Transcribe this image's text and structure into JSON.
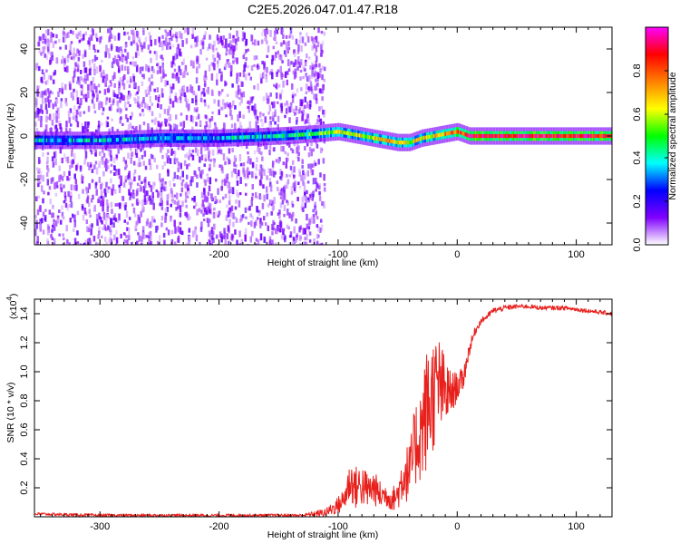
{
  "title": "C2E5.2026.047.01.47.R18",
  "chart_data": [
    {
      "type": "heatmap",
      "name": "spectrogram",
      "xlabel": "Height of straight line (km)",
      "ylabel": "Frequency (Hz)",
      "xlim": [
        -355,
        130
      ],
      "ylim": [
        -50,
        50
      ],
      "xticks": [
        -300,
        -200,
        -100,
        0,
        100
      ],
      "yticks": [
        -40,
        -20,
        0,
        20,
        40
      ],
      "colorbar": {
        "label": "Normalized spectral amplitude",
        "range": [
          0,
          1
        ],
        "ticks": [
          0.0,
          0.2,
          0.4,
          0.6,
          0.8
        ],
        "tick_labels": [
          "0.0",
          "0.2",
          "0.4",
          "0.6",
          "0.8"
        ],
        "colormap": [
          "#ffffff",
          "#8000ff",
          "#0000ff",
          "#00ffff",
          "#00ff00",
          "#ffff00",
          "#ff8000",
          "#ff0000",
          "#ff00ff"
        ]
      },
      "noise_region": {
        "x_range": [
          -355,
          -112
        ],
        "freq_range": [
          -50,
          50
        ],
        "typical_amplitude": 0.1
      },
      "carrier_track": {
        "x": [
          -355,
          -300,
          -250,
          -200,
          -150,
          -120,
          -100,
          -80,
          -60,
          -50,
          -40,
          -30,
          -20,
          -10,
          0,
          10,
          50,
          100,
          130
        ],
        "freq": [
          -2,
          -2,
          -1,
          -1,
          0,
          1,
          2,
          0,
          -2,
          -3,
          -3,
          -1,
          0,
          1,
          2,
          0,
          0,
          0,
          0
        ],
        "amplitude": [
          0.35,
          0.35,
          0.35,
          0.35,
          0.4,
          0.5,
          0.6,
          0.6,
          0.65,
          0.65,
          0.6,
          0.6,
          0.65,
          0.7,
          0.8,
          0.9,
          0.9,
          0.9,
          0.9
        ]
      }
    },
    {
      "type": "line",
      "name": "snr",
      "xlabel": "Height of straight line (km)",
      "ylabel": "SNR (10 * v/v)",
      "yscale_label": "(x10",
      "yscale_exponent": "4",
      "yscale_suffix": ")",
      "xlim": [
        -355,
        130
      ],
      "ylim": [
        0,
        1.5
      ],
      "xticks": [
        -300,
        -200,
        -100,
        0,
        100
      ],
      "yticks": [
        0.2,
        0.4,
        0.6,
        0.8,
        1.0,
        1.2,
        1.4
      ],
      "ytick_labels": [
        "0.2",
        "0.4",
        "0.6",
        "0.8",
        "1.0",
        "1.2",
        "1.4"
      ],
      "series": [
        {
          "name": "SNR",
          "color": "#e8201c",
          "x": [
            -355,
            -300,
            -200,
            -130,
            -110,
            -100,
            -95,
            -90,
            -85,
            -80,
            -75,
            -70,
            -65,
            -60,
            -55,
            -50,
            -45,
            -40,
            -35,
            -30,
            -25,
            -20,
            -15,
            -10,
            -5,
            0,
            5,
            10,
            15,
            20,
            25,
            30,
            40,
            50,
            60,
            70,
            80,
            90,
            100,
            110,
            120,
            130
          ],
          "y": [
            0.02,
            0.01,
            0.01,
            0.01,
            0.03,
            0.08,
            0.12,
            0.25,
            0.2,
            0.22,
            0.18,
            0.2,
            0.15,
            0.15,
            0.12,
            0.15,
            0.3,
            0.3,
            0.5,
            0.6,
            0.75,
            0.85,
            0.9,
            0.85,
            0.85,
            0.9,
            0.95,
            1.15,
            1.28,
            1.35,
            1.38,
            1.42,
            1.44,
            1.45,
            1.45,
            1.44,
            1.44,
            1.44,
            1.43,
            1.42,
            1.41,
            1.4
          ],
          "noise_amplitude": [
            0.01,
            0.01,
            0.01,
            0.01,
            0.03,
            0.06,
            0.08,
            0.15,
            0.15,
            0.15,
            0.12,
            0.12,
            0.1,
            0.08,
            0.08,
            0.1,
            0.2,
            0.2,
            0.3,
            0.35,
            0.45,
            0.4,
            0.35,
            0.25,
            0.15,
            0.1,
            0.08,
            0.05,
            0.03,
            0.02,
            0.02,
            0.02,
            0.02,
            0.015,
            0.015,
            0.015,
            0.015,
            0.015,
            0.015,
            0.015,
            0.015,
            0.015
          ]
        }
      ]
    }
  ]
}
